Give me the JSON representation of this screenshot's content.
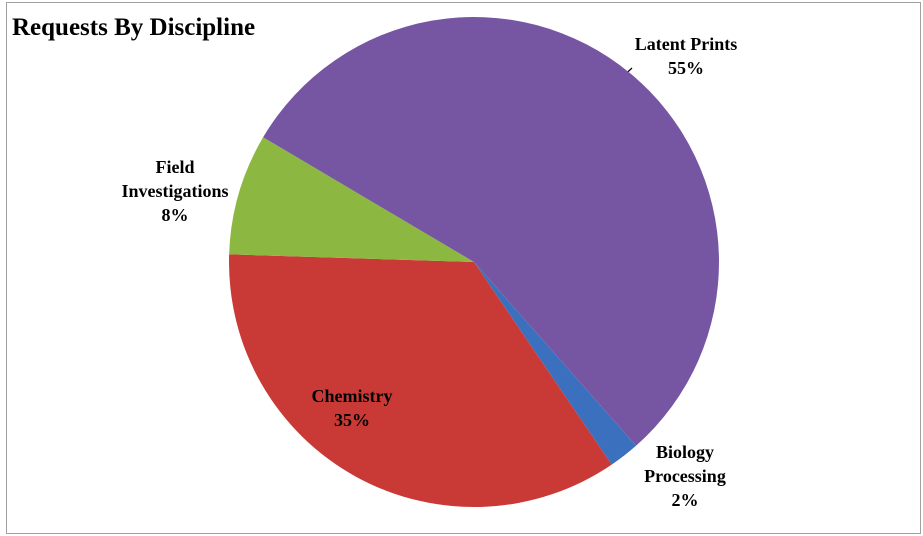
{
  "chart_data": {
    "type": "pie",
    "title": "Requests By Discipline",
    "categories": [
      "Biology Processing",
      "Chemistry",
      "Field Investigations",
      "Latent Prints"
    ],
    "values": [
      2,
      35,
      8,
      55
    ],
    "value_labels": [
      "2%",
      "35%",
      "8%",
      "55%"
    ],
    "colors": [
      "#3b70bf",
      "#c93a36",
      "#8cb842",
      "#7656a3"
    ]
  }
}
